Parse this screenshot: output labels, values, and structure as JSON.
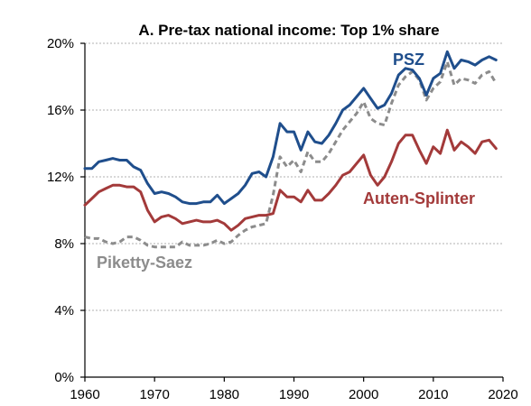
{
  "chart_data": {
    "type": "line",
    "title": "A. Pre-tax national income: Top 1% share",
    "xlabel": "",
    "ylabel": "",
    "xlim": [
      1960,
      2020
    ],
    "ylim": [
      0,
      20
    ],
    "x_ticks": [
      1960,
      1970,
      1980,
      1990,
      2000,
      2010,
      2020
    ],
    "y_ticks": [
      0,
      4,
      8,
      12,
      16,
      20
    ],
    "y_tick_labels": [
      "0%",
      "4%",
      "8%",
      "12%",
      "16%",
      "20%"
    ],
    "grid": "horizontal",
    "series": [
      {
        "name": "PSZ",
        "color": "#1f4e8c",
        "style": "solid",
        "x": [
          1960,
          1961,
          1962,
          1963,
          1964,
          1965,
          1966,
          1967,
          1968,
          1969,
          1970,
          1971,
          1972,
          1973,
          1974,
          1975,
          1976,
          1977,
          1978,
          1979,
          1980,
          1981,
          1982,
          1983,
          1984,
          1985,
          1986,
          1987,
          1988,
          1989,
          1990,
          1991,
          1992,
          1993,
          1994,
          1995,
          1996,
          1997,
          1998,
          1999,
          2000,
          2001,
          2002,
          2003,
          2004,
          2005,
          2006,
          2007,
          2008,
          2009,
          2010,
          2011,
          2012,
          2013,
          2014,
          2015,
          2016,
          2017,
          2018,
          2019
        ],
        "values": [
          12.5,
          12.5,
          12.9,
          13.0,
          13.1,
          13.0,
          13.0,
          12.6,
          12.4,
          11.6,
          11.0,
          11.1,
          11.0,
          10.8,
          10.5,
          10.4,
          10.4,
          10.5,
          10.5,
          10.9,
          10.4,
          10.7,
          11.0,
          11.5,
          12.2,
          12.3,
          12.0,
          13.2,
          15.2,
          14.7,
          14.7,
          13.6,
          14.7,
          14.1,
          14.0,
          14.5,
          15.2,
          16.0,
          16.3,
          16.8,
          17.3,
          16.7,
          16.1,
          16.3,
          17.0,
          18.1,
          18.5,
          18.4,
          17.9,
          16.9,
          17.9,
          18.2,
          19.5,
          18.5,
          19.0,
          18.9,
          18.7,
          19.0,
          19.2,
          19.0
        ]
      },
      {
        "name": "Piketty-Saez",
        "color": "#8c8c8c",
        "style": "dashed",
        "x": [
          1960,
          1961,
          1962,
          1963,
          1964,
          1965,
          1966,
          1967,
          1968,
          1969,
          1970,
          1971,
          1972,
          1973,
          1974,
          1975,
          1976,
          1977,
          1978,
          1979,
          1980,
          1981,
          1982,
          1983,
          1984,
          1985,
          1986,
          1987,
          1988,
          1989,
          1990,
          1991,
          1992,
          1993,
          1994,
          1995,
          1996,
          1997,
          1998,
          1999,
          2000,
          2001,
          2002,
          2003,
          2004,
          2005,
          2006,
          2007,
          2008,
          2009,
          2010,
          2011,
          2012,
          2013,
          2014,
          2015,
          2016,
          2017,
          2018,
          2019
        ],
        "values": [
          8.4,
          8.3,
          8.3,
          8.1,
          8.0,
          8.1,
          8.4,
          8.4,
          8.2,
          7.9,
          7.8,
          7.8,
          7.8,
          7.8,
          8.1,
          7.9,
          7.9,
          7.9,
          8.0,
          8.2,
          8.0,
          8.1,
          8.5,
          8.8,
          9.0,
          9.1,
          9.2,
          10.9,
          13.2,
          12.6,
          13.0,
          12.3,
          13.5,
          12.9,
          12.9,
          13.4,
          14.1,
          14.8,
          15.3,
          15.8,
          16.5,
          15.5,
          15.2,
          15.1,
          16.4,
          17.5,
          18.0,
          18.3,
          17.8,
          16.6,
          17.3,
          17.7,
          18.9,
          17.5,
          17.9,
          17.8,
          17.6,
          18.1,
          18.3,
          17.6
        ]
      },
      {
        "name": "Auten-Splinter",
        "color": "#a33a3a",
        "style": "solid",
        "x": [
          1960,
          1961,
          1962,
          1963,
          1964,
          1965,
          1966,
          1967,
          1968,
          1969,
          1970,
          1971,
          1972,
          1973,
          1974,
          1975,
          1976,
          1977,
          1978,
          1979,
          1980,
          1981,
          1982,
          1983,
          1984,
          1985,
          1986,
          1987,
          1988,
          1989,
          1990,
          1991,
          1992,
          1993,
          1994,
          1995,
          1996,
          1997,
          1998,
          1999,
          2000,
          2001,
          2002,
          2003,
          2004,
          2005,
          2006,
          2007,
          2008,
          2009,
          2010,
          2011,
          2012,
          2013,
          2014,
          2015,
          2016,
          2017,
          2018,
          2019
        ],
        "values": [
          10.3,
          10.7,
          11.1,
          11.3,
          11.5,
          11.5,
          11.4,
          11.4,
          11.1,
          10.0,
          9.3,
          9.6,
          9.7,
          9.5,
          9.2,
          9.3,
          9.4,
          9.3,
          9.3,
          9.4,
          9.2,
          8.8,
          9.1,
          9.5,
          9.6,
          9.7,
          9.7,
          9.8,
          11.2,
          10.8,
          10.8,
          10.5,
          11.2,
          10.6,
          10.6,
          11.0,
          11.5,
          12.1,
          12.3,
          12.8,
          13.3,
          12.1,
          11.5,
          12.0,
          12.9,
          14.0,
          14.5,
          14.5,
          13.6,
          12.8,
          13.8,
          13.4,
          14.8,
          13.6,
          14.1,
          13.8,
          13.4,
          14.1,
          14.2,
          13.7
        ]
      }
    ]
  }
}
